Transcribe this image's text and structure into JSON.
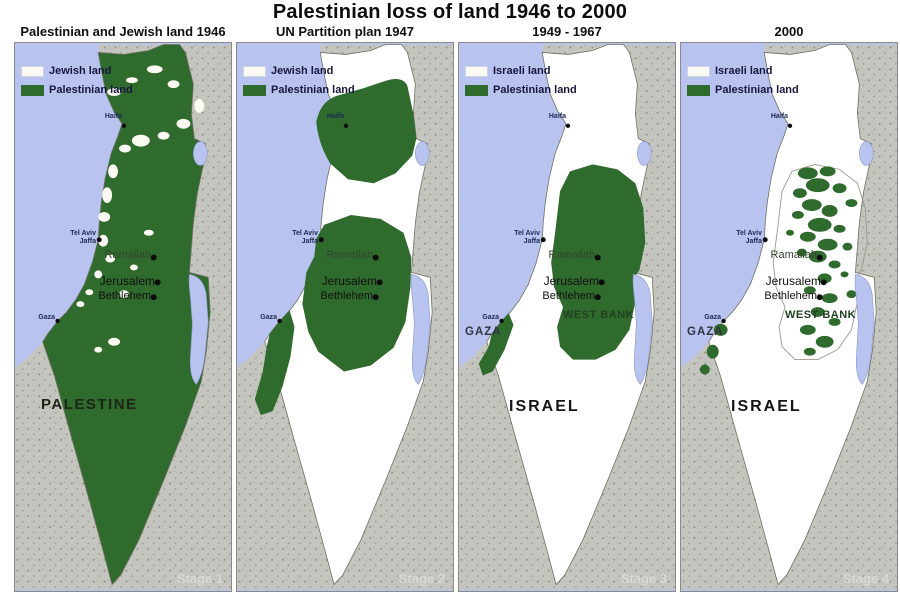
{
  "page_title": "Palestinian loss of land 1946 to 2000",
  "colors": {
    "sea": "#b9c3f0",
    "palestinian_green": "#2e6b2c",
    "jewish_white": "#fbfbf3",
    "outside_gray": "#c5c5bf",
    "legend_text": "#17173d"
  },
  "cities": {
    "haifa": "Haifa",
    "tel_aviv": "Tel Aviv",
    "jaffa": "Jaffa",
    "ramallah": "Ramallah",
    "jerusalem": "Jerusalem",
    "bethlehem": "Bethlehem",
    "gaza": "Gaza"
  },
  "panels": [
    {
      "title": "Palestinian and Jewish land 1946",
      "variant": "1946",
      "legend": [
        {
          "label": "Jewish land",
          "color": "#fbfbf3"
        },
        {
          "label": "Palestinian land",
          "color": "#2e6b2c"
        }
      ],
      "region_labels": {
        "main": "PALESTINE"
      },
      "stage": "Stage 1"
    },
    {
      "title": "UN Partition plan 1947",
      "variant": "1947",
      "legend": [
        {
          "label": "Jewish land",
          "color": "#fbfbf3"
        },
        {
          "label": "Palestinian land",
          "color": "#2e6b2c"
        }
      ],
      "region_labels": {},
      "stage": "Stage 2"
    },
    {
      "title": "1949 - 1967",
      "variant": "1949",
      "legend": [
        {
          "label": "Israeli land",
          "color": "#fbfbf3"
        },
        {
          "label": "Palestinian land",
          "color": "#2e6b2c"
        }
      ],
      "region_labels": {
        "main": "ISRAEL",
        "west_bank": "WEST BANK",
        "gaza": "GAZA"
      },
      "stage": "Stage 3"
    },
    {
      "title": "2000",
      "variant": "2000",
      "legend": [
        {
          "label": "Israeli land",
          "color": "#fbfbf3"
        },
        {
          "label": "Palestinian land",
          "color": "#2e6b2c"
        }
      ],
      "region_labels": {
        "main": "ISRAEL",
        "west_bank": "WEST BANK",
        "gaza": "GAZA"
      },
      "stage": "Stage 4"
    }
  ]
}
